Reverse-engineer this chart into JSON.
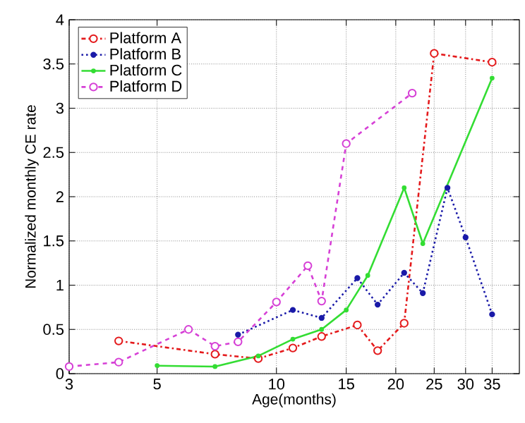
{
  "chart_data": {
    "type": "line",
    "xlabel": "Age(months)",
    "ylabel": "Normalized monthly CE rate",
    "log": "x",
    "xlim": [
      3,
      41
    ],
    "xticks": [
      3,
      5,
      10,
      15,
      20,
      25,
      30,
      35
    ],
    "ylim": [
      0,
      4
    ],
    "yticks": [
      0,
      0.5,
      1,
      1.5,
      2,
      2.5,
      3,
      3.5,
      4
    ],
    "grid": true,
    "legend": "top left",
    "series": [
      {
        "name": "Platform A",
        "color": "#e41a1c",
        "marker": "circle",
        "line_style": "dashdot",
        "x": [
          4,
          7,
          9,
          11,
          13,
          16,
          18,
          21,
          25,
          35
        ],
        "values": [
          0.37,
          0.22,
          0.17,
          0.29,
          0.42,
          0.55,
          0.26,
          0.57,
          3.62,
          3.52
        ]
      },
      {
        "name": "Platform B",
        "color": "#1a1aa8",
        "marker": "circle",
        "line_style": "dotted",
        "x": [
          8,
          11,
          13,
          16,
          18,
          21,
          23.4,
          27,
          30,
          35
        ],
        "values": [
          0.44,
          0.72,
          0.63,
          1.08,
          0.78,
          1.14,
          0.91,
          2.1,
          1.54,
          0.67
        ]
      },
      {
        "name": "Platform C",
        "color": "#33dd33",
        "marker": "circle",
        "line_style": "solid",
        "x": [
          5,
          7,
          9,
          11,
          13,
          15,
          17,
          21,
          23.4,
          35
        ],
        "values": [
          0.09,
          0.08,
          0.2,
          0.39,
          0.5,
          0.72,
          1.11,
          2.1,
          1.47,
          3.34
        ]
      },
      {
        "name": "Platform D",
        "color": "#d640d6",
        "marker": "circle",
        "line_style": "dashed",
        "x": [
          3,
          4,
          6,
          7,
          8,
          10,
          12,
          13,
          15,
          22
        ],
        "values": [
          0.08,
          0.13,
          0.5,
          0.31,
          0.36,
          0.81,
          1.22,
          0.82,
          2.6,
          3.17
        ]
      }
    ]
  }
}
